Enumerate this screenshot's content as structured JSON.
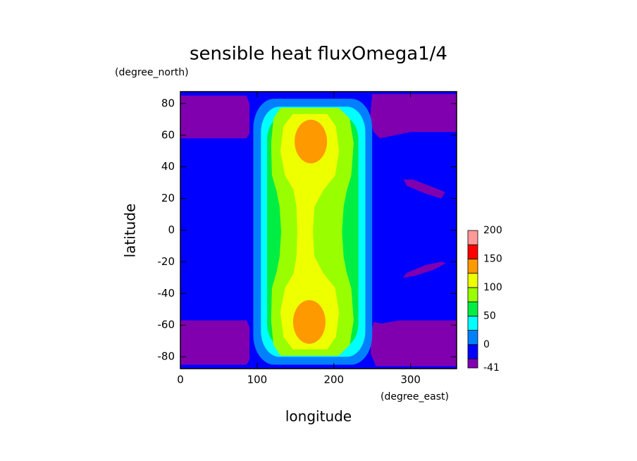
{
  "chart_data": {
    "type": "contour",
    "title": "sensible heat fluxOmega1/4",
    "y_unit": "(degree_north)",
    "x_unit": "(degree_east)",
    "xlabel": "longitude",
    "ylabel": "latitude",
    "xlim": [
      0,
      360
    ],
    "xticks": [
      0,
      100,
      200,
      300
    ],
    "ylim": [
      -87.5,
      87.5
    ],
    "yticks": [
      -80,
      -60,
      -40,
      -20,
      0,
      20,
      40,
      60,
      80
    ],
    "levels": [
      -41,
      -25,
      0,
      25,
      50,
      75,
      100,
      125,
      150,
      175,
      200
    ],
    "colors": [
      "#8000b0",
      "#0000ff",
      "#0080ff",
      "#00ffff",
      "#00ee44",
      "#99ff00",
      "#eeff00",
      "#ff9900",
      "#ff0000",
      "#ff9999"
    ],
    "colorbar_ticks": [
      200,
      150,
      100,
      50,
      0,
      -41
    ]
  }
}
